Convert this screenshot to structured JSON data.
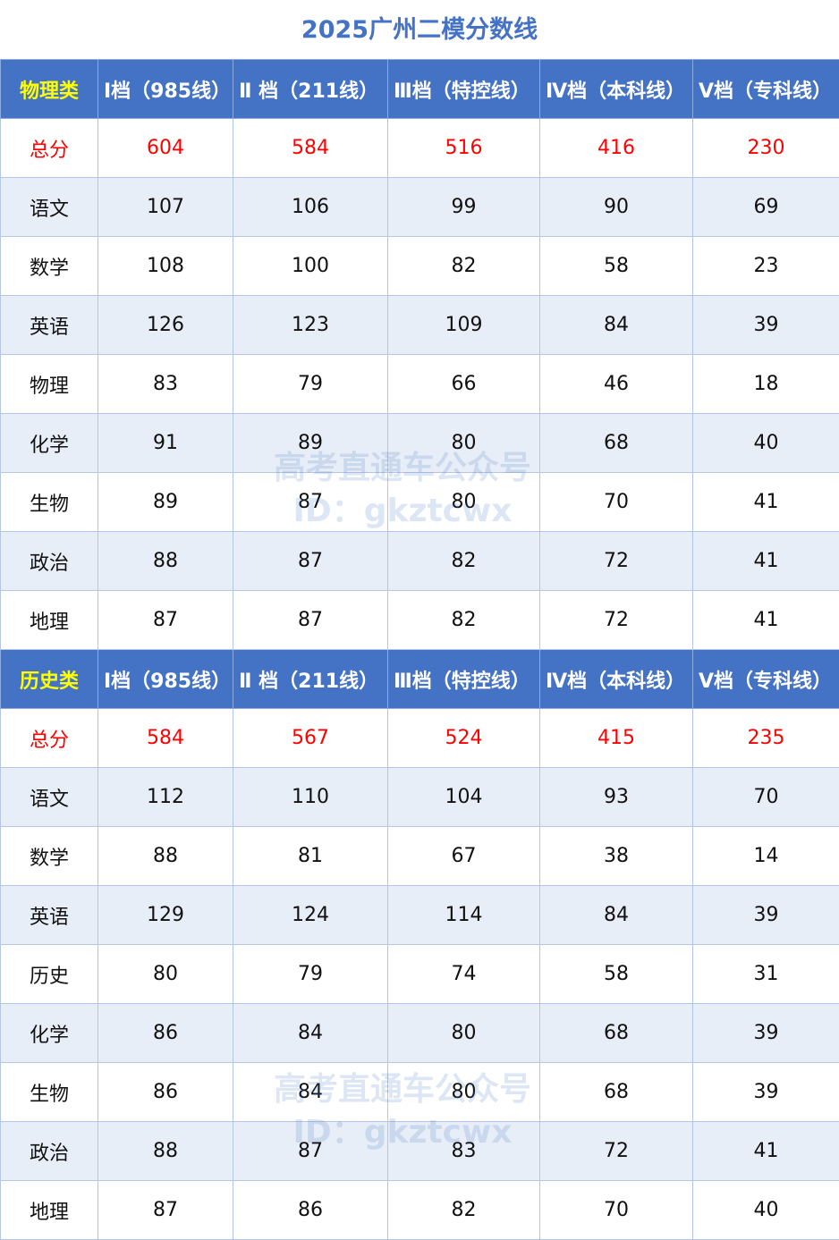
{
  "title": "2025广州二模分数线",
  "columns": [
    "Ⅰ档（985线）",
    "Ⅱ 档（211线）",
    "Ⅲ档（特控线）",
    "Ⅳ档（本科线）",
    "Ⅴ档（专科线）"
  ],
  "sections": [
    {
      "category": "物理类",
      "rows": [
        {
          "subject": "总分",
          "values": [
            "604",
            "584",
            "516",
            "416",
            "230"
          ]
        },
        {
          "subject": "语文",
          "values": [
            "107",
            "106",
            "99",
            "90",
            "69"
          ]
        },
        {
          "subject": "数学",
          "values": [
            "108",
            "100",
            "82",
            "58",
            "23"
          ]
        },
        {
          "subject": "英语",
          "values": [
            "126",
            "123",
            "109",
            "84",
            "39"
          ]
        },
        {
          "subject": "物理",
          "values": [
            "83",
            "79",
            "66",
            "46",
            "18"
          ]
        },
        {
          "subject": "化学",
          "values": [
            "91",
            "89",
            "80",
            "68",
            "40"
          ]
        },
        {
          "subject": "生物",
          "values": [
            "89",
            "87",
            "80",
            "70",
            "41"
          ]
        },
        {
          "subject": "政治",
          "values": [
            "88",
            "87",
            "82",
            "72",
            "41"
          ]
        },
        {
          "subject": "地理",
          "values": [
            "87",
            "87",
            "82",
            "72",
            "41"
          ]
        }
      ]
    },
    {
      "category": "历史类",
      "rows": [
        {
          "subject": "总分",
          "values": [
            "584",
            "567",
            "524",
            "415",
            "235"
          ]
        },
        {
          "subject": "语文",
          "values": [
            "112",
            "110",
            "104",
            "93",
            "70"
          ]
        },
        {
          "subject": "数学",
          "values": [
            "88",
            "81",
            "67",
            "38",
            "14"
          ]
        },
        {
          "subject": "英语",
          "values": [
            "129",
            "124",
            "114",
            "84",
            "39"
          ]
        },
        {
          "subject": "历史",
          "values": [
            "80",
            "79",
            "74",
            "58",
            "31"
          ]
        },
        {
          "subject": "化学",
          "values": [
            "86",
            "84",
            "80",
            "68",
            "39"
          ]
        },
        {
          "subject": "生物",
          "values": [
            "86",
            "84",
            "80",
            "68",
            "39"
          ]
        },
        {
          "subject": "政治",
          "values": [
            "88",
            "87",
            "83",
            "72",
            "41"
          ]
        },
        {
          "subject": "地理",
          "values": [
            "87",
            "86",
            "82",
            "70",
            "40"
          ]
        }
      ]
    }
  ],
  "watermark": {
    "line1": "高考直通车公众号",
    "line2": "ID：gkztcwx"
  },
  "colors": {
    "header_bg": "#4472C4",
    "category_text": "#FFFF00",
    "total_text": "#FF0000",
    "title": "#4472C4"
  }
}
